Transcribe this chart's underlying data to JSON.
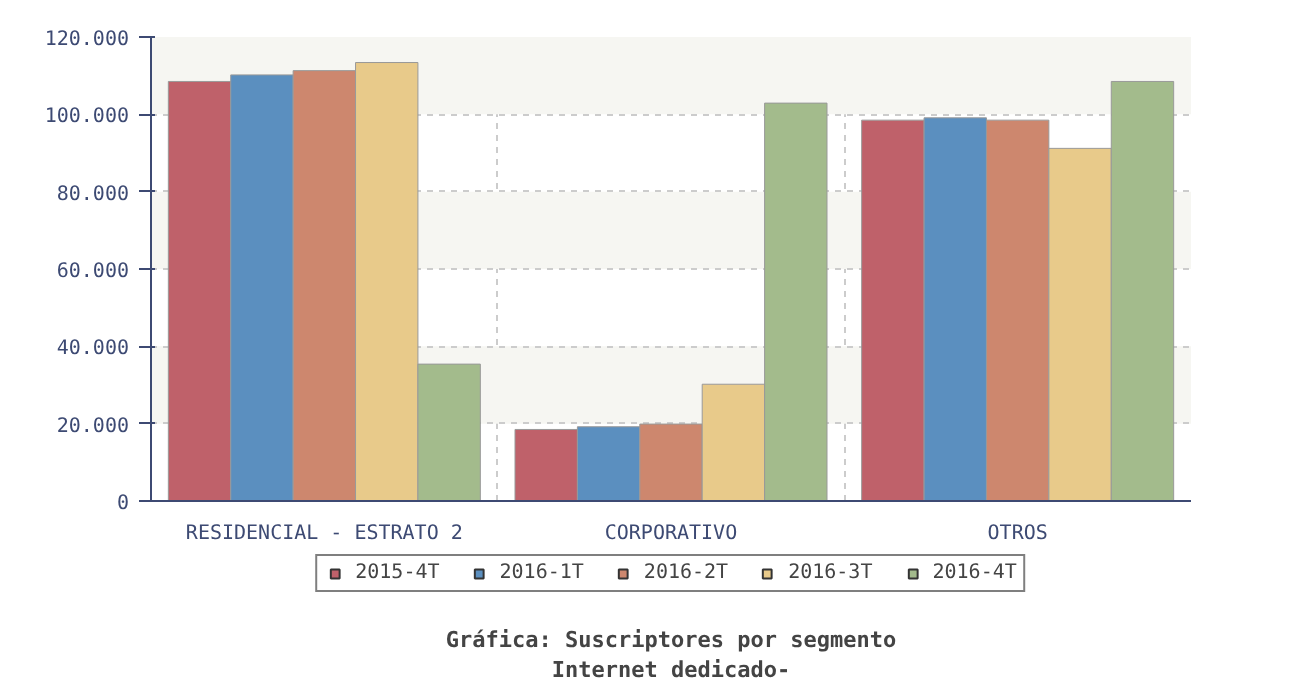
{
  "chart_data": {
    "type": "bar",
    "title": "Gráfica: Suscriptores por segmento",
    "subtitle": "Internet dedicado-",
    "categories": [
      "RESIDENCIAL - ESTRATO 2",
      "CORPORATIVO",
      "OTROS"
    ],
    "series": [
      {
        "name": "2015-4T",
        "color": "#bf616a",
        "values": [
          108500,
          18500,
          98500
        ]
      },
      {
        "name": "2016-1T",
        "color": "#5b8fbf",
        "values": [
          110200,
          19200,
          99100
        ]
      },
      {
        "name": "2016-2T",
        "color": "#cd876e",
        "values": [
          111300,
          19900,
          98500
        ]
      },
      {
        "name": "2016-3T",
        "color": "#e8ca8a",
        "values": [
          113400,
          30200,
          91200
        ]
      },
      {
        "name": "2016-4T",
        "color": "#a3bb8c",
        "values": [
          35400,
          102900,
          108500
        ]
      }
    ],
    "ylim": [
      0,
      120000
    ],
    "yticks": [
      {
        "value": 0,
        "label": "0"
      },
      {
        "value": 20000,
        "label": "20.000"
      },
      {
        "value": 40000,
        "label": "40.000"
      },
      {
        "value": 60000,
        "label": "60.000"
      },
      {
        "value": 80000,
        "label": "80.000"
      },
      {
        "value": 100000,
        "label": "100.000"
      },
      {
        "value": 120000,
        "label": "120.000"
      }
    ],
    "grid": true,
    "legend": "bottom"
  }
}
